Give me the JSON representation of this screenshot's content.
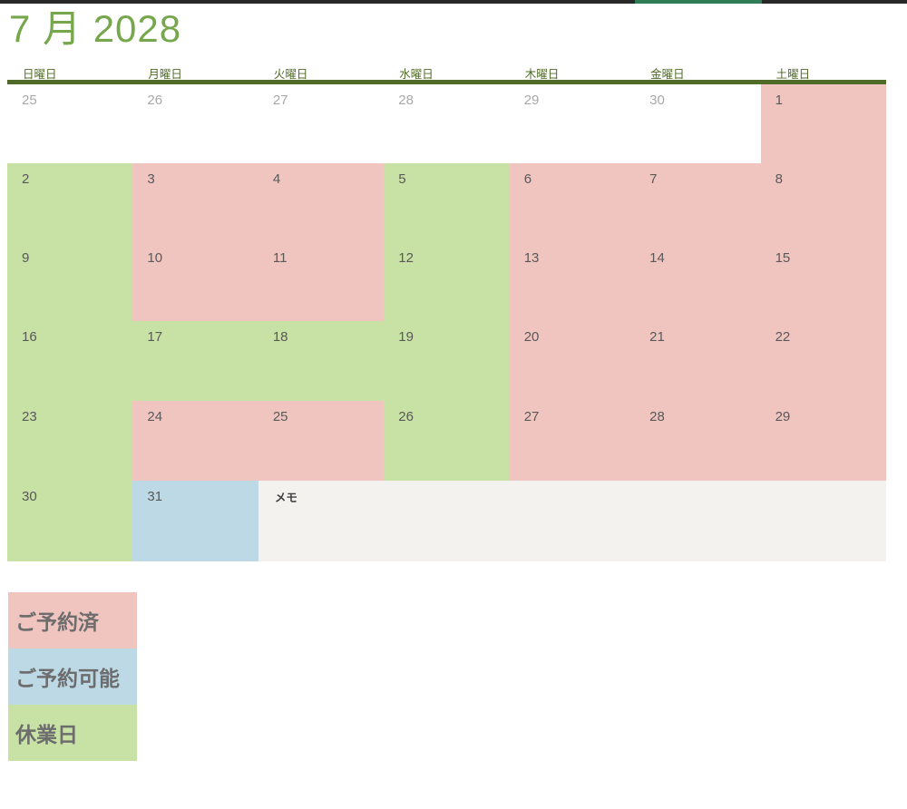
{
  "window": {
    "edge_bar_color": "#282828",
    "edge_accent_color": "#2e7d57"
  },
  "title": "7 月 2028",
  "weekday_headers": [
    "日曜日",
    "月曜日",
    "火曜日",
    "水曜日",
    "木曜日",
    "金曜日",
    "土曜日"
  ],
  "calendar": {
    "rows": [
      [
        {
          "day": "25",
          "status": "outside"
        },
        {
          "day": "26",
          "status": "outside"
        },
        {
          "day": "27",
          "status": "outside"
        },
        {
          "day": "28",
          "status": "outside"
        },
        {
          "day": "29",
          "status": "outside"
        },
        {
          "day": "30",
          "status": "outside"
        },
        {
          "day": "1",
          "status": "booked"
        }
      ],
      [
        {
          "day": "2",
          "status": "closed"
        },
        {
          "day": "3",
          "status": "booked"
        },
        {
          "day": "4",
          "status": "booked"
        },
        {
          "day": "5",
          "status": "closed"
        },
        {
          "day": "6",
          "status": "booked"
        },
        {
          "day": "7",
          "status": "booked"
        },
        {
          "day": "8",
          "status": "booked"
        }
      ],
      [
        {
          "day": "9",
          "status": "closed"
        },
        {
          "day": "10",
          "status": "booked"
        },
        {
          "day": "11",
          "status": "booked"
        },
        {
          "day": "12",
          "status": "closed"
        },
        {
          "day": "13",
          "status": "booked"
        },
        {
          "day": "14",
          "status": "booked"
        },
        {
          "day": "15",
          "status": "booked"
        }
      ],
      [
        {
          "day": "16",
          "status": "closed"
        },
        {
          "day": "17",
          "status": "closed"
        },
        {
          "day": "18",
          "status": "closed"
        },
        {
          "day": "19",
          "status": "closed"
        },
        {
          "day": "20",
          "status": "booked"
        },
        {
          "day": "21",
          "status": "booked"
        },
        {
          "day": "22",
          "status": "booked"
        }
      ],
      [
        {
          "day": "23",
          "status": "closed"
        },
        {
          "day": "24",
          "status": "booked"
        },
        {
          "day": "25",
          "status": "booked"
        },
        {
          "day": "26",
          "status": "closed"
        },
        {
          "day": "27",
          "status": "booked"
        },
        {
          "day": "28",
          "status": "booked"
        },
        {
          "day": "29",
          "status": "booked"
        }
      ],
      [
        {
          "day": "30",
          "status": "closed"
        },
        {
          "day": "31",
          "status": "available"
        },
        {
          "type": "memo",
          "label": "メモ",
          "span": 5
        }
      ]
    ]
  },
  "legend": [
    {
      "label": "ご予約済",
      "status": "booked"
    },
    {
      "label": "ご予約可能",
      "status": "available"
    },
    {
      "label": "休業日",
      "status": "closed"
    }
  ],
  "colors": {
    "booked": "#f0c5c0",
    "available": "#bcd9e5",
    "closed": "#c8e1a4",
    "memo_bg": "#f3f2ee",
    "olive": "#4f6b27",
    "title_green": "#77a74d"
  }
}
